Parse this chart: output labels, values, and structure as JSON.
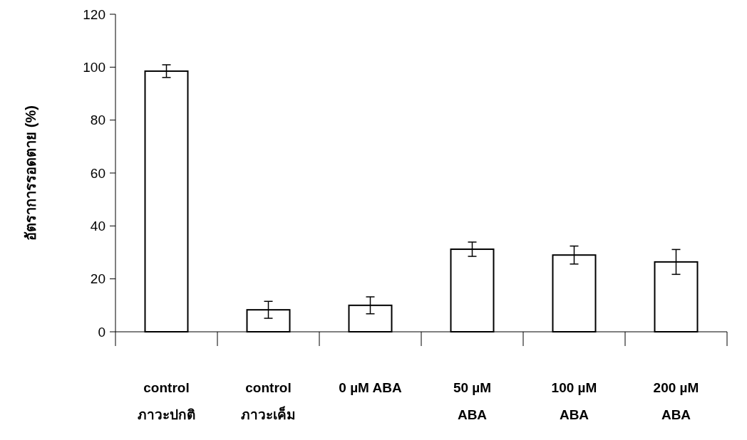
{
  "chart_data": {
    "type": "bar",
    "ylabel": "อัตราการรอดตาย (%)",
    "categories": [
      "control\nภาวะปกติ",
      "control\nภาวะเค็ม",
      "0 µM ABA",
      "50 µM\nABA",
      "100 µM\nABA",
      "200 µM\nABA"
    ],
    "values": [
      98.5,
      8.3,
      10,
      31.2,
      29,
      26.4
    ],
    "errors": [
      2.4,
      3.2,
      3.2,
      2.7,
      3.4,
      4.7
    ],
    "color": "#ffffff",
    "ylim": [
      0,
      120
    ],
    "yticks": [
      0,
      20,
      40,
      60,
      80,
      100,
      120
    ],
    "grid": false
  }
}
